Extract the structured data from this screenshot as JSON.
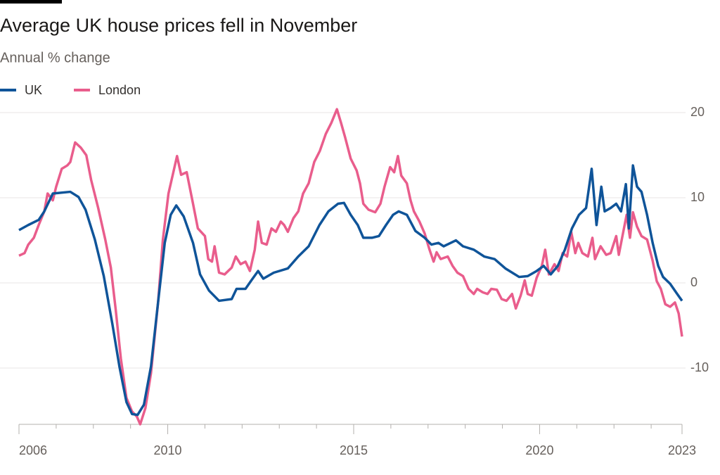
{
  "chart_data": {
    "type": "line",
    "title": "Average UK house prices fell in November",
    "subtitle": "Annual % change",
    "xlim": [
      2006,
      2023.83
    ],
    "xticks": [
      2006,
      2010,
      2015,
      2020,
      {
        "value": 2023.83,
        "label": "2023"
      }
    ],
    "xminorticks": [
      2007,
      2008,
      2009,
      2011,
      2012,
      2013,
      2014,
      2016,
      2017,
      2018,
      2019,
      2021,
      2022,
      2023
    ],
    "ylim": [
      -16.61,
      20.83
    ],
    "yticks": [
      -10,
      0,
      10,
      20
    ],
    "grid": true,
    "legend": "top-left",
    "series": [
      {
        "name": "UK",
        "color": "#0f5499",
        "x": [
          2006.0,
          2006.25,
          2006.53,
          2006.68,
          2006.91,
          2007.38,
          2007.6,
          2007.79,
          2008.04,
          2008.28,
          2008.51,
          2008.7,
          2008.89,
          2009.04,
          2009.19,
          2009.36,
          2009.55,
          2009.74,
          2009.92,
          2010.08,
          2010.23,
          2010.43,
          2010.68,
          2010.87,
          2011.11,
          2011.38,
          2011.72,
          2011.85,
          2012.09,
          2012.25,
          2012.43,
          2012.57,
          2012.85,
          2013.23,
          2013.51,
          2013.79,
          2014.08,
          2014.32,
          2014.58,
          2014.74,
          2014.92,
          2015.11,
          2015.26,
          2015.49,
          2015.68,
          2015.87,
          2016.06,
          2016.21,
          2016.43,
          2016.66,
          2016.91,
          2017.09,
          2017.28,
          2017.42,
          2017.75,
          2017.94,
          2018.23,
          2018.51,
          2018.79,
          2019.08,
          2019.45,
          2019.68,
          2019.92,
          2020.11,
          2020.3,
          2020.49,
          2020.68,
          2020.87,
          2021.06,
          2021.25,
          2021.4,
          2021.53,
          2021.66,
          2021.75,
          2021.91,
          2022.06,
          2022.19,
          2022.32,
          2022.4,
          2022.51,
          2022.62,
          2022.74,
          2022.89,
          2023.04,
          2023.19,
          2023.32,
          2023.51,
          2023.7,
          2023.83
        ],
        "values": [
          6.2,
          6.8,
          7.4,
          8.4,
          10.5,
          10.7,
          10.1,
          8.6,
          5.1,
          0.8,
          -4.8,
          -9.8,
          -14.0,
          -15.4,
          -15.5,
          -14.3,
          -9.8,
          -2.3,
          4.7,
          8.0,
          9.1,
          7.8,
          4.7,
          1.0,
          -0.9,
          -2.1,
          -1.9,
          -0.7,
          -0.7,
          0.3,
          1.4,
          0.5,
          1.2,
          1.7,
          3.1,
          4.3,
          6.8,
          8.4,
          9.3,
          9.4,
          8.0,
          6.8,
          5.3,
          5.3,
          5.5,
          6.8,
          8.0,
          8.4,
          8.0,
          6.1,
          5.3,
          4.5,
          4.7,
          4.3,
          5.0,
          4.3,
          3.9,
          3.1,
          2.8,
          1.7,
          0.7,
          0.8,
          1.4,
          2.0,
          1.0,
          2.0,
          3.9,
          6.4,
          8.0,
          8.8,
          13.4,
          6.8,
          11.3,
          8.4,
          8.8,
          9.3,
          8.4,
          11.6,
          6.4,
          13.8,
          11.3,
          10.7,
          8.0,
          4.7,
          2.0,
          0.7,
          -0.1,
          -1.3,
          -2.1
        ]
      },
      {
        "name": "London",
        "color": "#e95d8c",
        "x": [
          2006.0,
          2006.15,
          2006.25,
          2006.4,
          2006.53,
          2006.68,
          2006.77,
          2006.91,
          2007.0,
          2007.15,
          2007.3,
          2007.38,
          2007.51,
          2007.66,
          2007.81,
          2007.94,
          2008.13,
          2008.32,
          2008.47,
          2008.6,
          2008.74,
          2008.89,
          2009.04,
          2009.17,
          2009.26,
          2009.4,
          2009.55,
          2009.74,
          2009.87,
          2010.02,
          2010.13,
          2010.25,
          2010.36,
          2010.51,
          2010.68,
          2010.81,
          2011.0,
          2011.09,
          2011.19,
          2011.26,
          2011.38,
          2011.53,
          2011.72,
          2011.83,
          2011.96,
          2012.09,
          2012.21,
          2012.34,
          2012.43,
          2012.53,
          2012.66,
          2012.79,
          2012.91,
          2013.04,
          2013.13,
          2013.23,
          2013.38,
          2013.51,
          2013.64,
          2013.79,
          2013.94,
          2014.09,
          2014.25,
          2014.4,
          2014.55,
          2014.66,
          2014.77,
          2014.92,
          2015.08,
          2015.17,
          2015.26,
          2015.4,
          2015.58,
          2015.72,
          2015.83,
          2015.98,
          2016.09,
          2016.19,
          2016.28,
          2016.43,
          2016.53,
          2016.62,
          2016.77,
          2016.91,
          2017.04,
          2017.15,
          2017.23,
          2017.34,
          2017.53,
          2017.66,
          2017.79,
          2017.94,
          2018.09,
          2018.23,
          2018.32,
          2018.47,
          2018.6,
          2018.7,
          2018.85,
          2018.98,
          2019.11,
          2019.26,
          2019.36,
          2019.49,
          2019.6,
          2019.68,
          2019.79,
          2019.92,
          2020.06,
          2020.15,
          2020.25,
          2020.4,
          2020.51,
          2020.62,
          2020.74,
          2020.85,
          2020.96,
          2021.04,
          2021.15,
          2021.3,
          2021.42,
          2021.49,
          2021.64,
          2021.79,
          2021.91,
          2022.06,
          2022.13,
          2022.25,
          2022.34,
          2022.43,
          2022.51,
          2022.62,
          2022.74,
          2022.89,
          2023.04,
          2023.15,
          2023.26,
          2023.38,
          2023.51,
          2023.64,
          2023.74,
          2023.83
        ],
        "values": [
          3.2,
          3.5,
          4.5,
          5.3,
          6.8,
          8.4,
          10.5,
          9.7,
          11.3,
          13.4,
          13.8,
          14.2,
          16.5,
          15.9,
          15.0,
          12.1,
          8.8,
          5.1,
          1.8,
          -3.1,
          -8.9,
          -13.5,
          -15.1,
          -15.7,
          -16.6,
          -14.7,
          -10.6,
          -2.3,
          5.1,
          10.5,
          12.6,
          14.9,
          12.7,
          13.0,
          9.3,
          6.4,
          5.5,
          2.8,
          2.5,
          4.3,
          1.2,
          1.0,
          1.8,
          3.1,
          2.2,
          2.5,
          1.4,
          3.9,
          7.2,
          4.7,
          4.5,
          6.4,
          6.0,
          7.2,
          6.8,
          6.0,
          7.6,
          8.4,
          10.5,
          11.7,
          14.2,
          15.5,
          17.5,
          18.8,
          20.4,
          18.8,
          17.1,
          14.6,
          13.2,
          11.7,
          9.3,
          8.6,
          8.3,
          9.3,
          11.3,
          13.6,
          13.0,
          14.9,
          12.6,
          11.7,
          9.7,
          8.4,
          7.2,
          5.8,
          3.9,
          2.5,
          3.6,
          2.8,
          3.1,
          2.0,
          1.2,
          0.8,
          -0.7,
          -1.3,
          -0.7,
          -1.1,
          -1.3,
          -0.7,
          -0.8,
          -1.9,
          -2.1,
          -1.3,
          -3.0,
          -1.5,
          0.3,
          -1.3,
          -1.5,
          0.6,
          2.0,
          3.9,
          1.0,
          2.2,
          1.4,
          3.5,
          3.1,
          6.0,
          3.5,
          4.7,
          3.5,
          3.1,
          5.3,
          2.8,
          4.3,
          3.3,
          3.5,
          5.5,
          3.3,
          6.0,
          8.0,
          5.3,
          8.3,
          6.6,
          5.5,
          5.1,
          2.6,
          0.2,
          -0.7,
          -2.5,
          -2.8,
          -2.3,
          -3.6,
          -6.3
        ]
      }
    ]
  }
}
